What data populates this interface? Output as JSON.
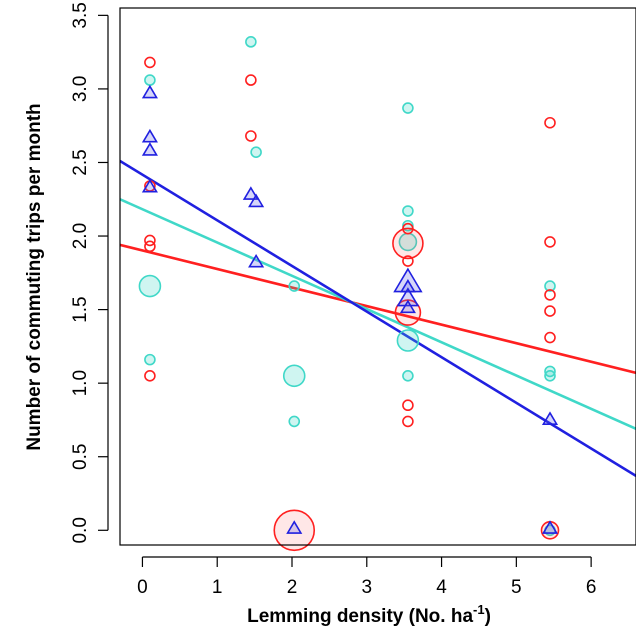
{
  "chart_data": {
    "type": "scatter",
    "title": "",
    "xlabel_main": "Lemming density (No. ha",
    "xlabel_sup": "-1",
    "xlabel_close": ")",
    "ylabel": "Number of commuting trips per month",
    "xlim": [
      -0.3,
      6.6
    ],
    "ylim": [
      -0.1,
      3.55
    ],
    "xticks": [
      0,
      1,
      2,
      3,
      4,
      5,
      6
    ],
    "xtick_labels": [
      "0",
      "1",
      "2",
      "3",
      "4",
      "5",
      "6"
    ],
    "yticks": [
      0.0,
      0.5,
      1.0,
      1.5,
      2.0,
      2.5,
      3.0,
      3.5
    ],
    "ytick_labels": [
      "0.0",
      "0.5",
      "1.0",
      "1.5",
      "2.0",
      "2.5",
      "3.0",
      "3.5"
    ],
    "grid": false,
    "legend": "none",
    "series": [
      {
        "marker": "circle",
        "color": "#ff2020",
        "points": [
          {
            "x": 0.1,
            "y": 3.18,
            "w": 1
          },
          {
            "x": 0.1,
            "y": 2.34,
            "w": 1
          },
          {
            "x": 0.1,
            "y": 1.97,
            "w": 1
          },
          {
            "x": 0.1,
            "y": 1.93,
            "w": 1
          },
          {
            "x": 0.1,
            "y": 1.05,
            "w": 1
          },
          {
            "x": 1.45,
            "y": 3.06,
            "w": 1
          },
          {
            "x": 1.45,
            "y": 2.68,
            "w": 1
          },
          {
            "x": 2.03,
            "y": 0.0,
            "w": 4
          },
          {
            "x": 3.55,
            "y": 2.05,
            "w": 1
          },
          {
            "x": 3.55,
            "y": 1.95,
            "w": 3
          },
          {
            "x": 3.55,
            "y": 1.83,
            "w": 1
          },
          {
            "x": 3.55,
            "y": 1.48,
            "w": 2.5
          },
          {
            "x": 3.55,
            "y": 0.85,
            "w": 1
          },
          {
            "x": 3.55,
            "y": 0.74,
            "w": 1
          },
          {
            "x": 5.45,
            "y": 2.77,
            "w": 1
          },
          {
            "x": 5.45,
            "y": 1.96,
            "w": 1
          },
          {
            "x": 5.45,
            "y": 1.6,
            "w": 1
          },
          {
            "x": 5.45,
            "y": 1.49,
            "w": 1
          },
          {
            "x": 5.45,
            "y": 1.31,
            "w": 1
          },
          {
            "x": 5.45,
            "y": 0.0,
            "w": 1.7
          }
        ],
        "fit": {
          "x0": -0.3,
          "y0": 1.94,
          "x1": 6.6,
          "y1": 1.07
        }
      },
      {
        "marker": "circle-filled",
        "color": "#40d8c8",
        "points": [
          {
            "x": 0.1,
            "y": 3.06,
            "w": 1
          },
          {
            "x": 0.1,
            "y": 1.66,
            "w": 2.1
          },
          {
            "x": 0.1,
            "y": 1.16,
            "w": 1
          },
          {
            "x": 1.45,
            "y": 3.32,
            "w": 1
          },
          {
            "x": 1.52,
            "y": 2.57,
            "w": 1
          },
          {
            "x": 2.03,
            "y": 1.66,
            "w": 1
          },
          {
            "x": 2.03,
            "y": 1.05,
            "w": 2.1
          },
          {
            "x": 2.03,
            "y": 0.74,
            "w": 1
          },
          {
            "x": 3.55,
            "y": 2.87,
            "w": 1
          },
          {
            "x": 3.55,
            "y": 2.17,
            "w": 1
          },
          {
            "x": 3.55,
            "y": 2.07,
            "w": 1
          },
          {
            "x": 3.55,
            "y": 1.96,
            "w": 1.7
          },
          {
            "x": 3.55,
            "y": 1.29,
            "w": 2.1
          },
          {
            "x": 3.55,
            "y": 1.05,
            "w": 1
          },
          {
            "x": 5.45,
            "y": 1.66,
            "w": 1
          },
          {
            "x": 5.45,
            "y": 1.08,
            "w": 1
          },
          {
            "x": 5.45,
            "y": 1.05,
            "w": 1
          },
          {
            "x": 5.45,
            "y": 0.0,
            "w": 1
          }
        ],
        "fit": {
          "x0": -0.3,
          "y0": 2.25,
          "x1": 6.6,
          "y1": 0.69
        }
      },
      {
        "marker": "triangle",
        "color": "#2020e0",
        "points": [
          {
            "x": 0.1,
            "y": 2.97,
            "w": 1
          },
          {
            "x": 0.1,
            "y": 2.67,
            "w": 1
          },
          {
            "x": 0.1,
            "y": 2.58,
            "w": 1
          },
          {
            "x": 0.1,
            "y": 2.33,
            "w": 1
          },
          {
            "x": 1.45,
            "y": 2.28,
            "w": 1
          },
          {
            "x": 1.52,
            "y": 2.23,
            "w": 1
          },
          {
            "x": 1.52,
            "y": 1.82,
            "w": 1
          },
          {
            "x": 2.03,
            "y": 0.01,
            "w": 1
          },
          {
            "x": 3.55,
            "y": 1.68,
            "w": 2
          },
          {
            "x": 3.55,
            "y": 1.65,
            "w": 1
          },
          {
            "x": 3.55,
            "y": 1.57,
            "w": 1.5
          },
          {
            "x": 3.55,
            "y": 1.51,
            "w": 1
          },
          {
            "x": 5.45,
            "y": 0.75,
            "w": 1
          },
          {
            "x": 5.45,
            "y": 0.01,
            "w": 1
          }
        ],
        "fit": {
          "x0": -0.3,
          "y0": 2.51,
          "x1": 6.6,
          "y1": 0.37
        }
      }
    ]
  }
}
